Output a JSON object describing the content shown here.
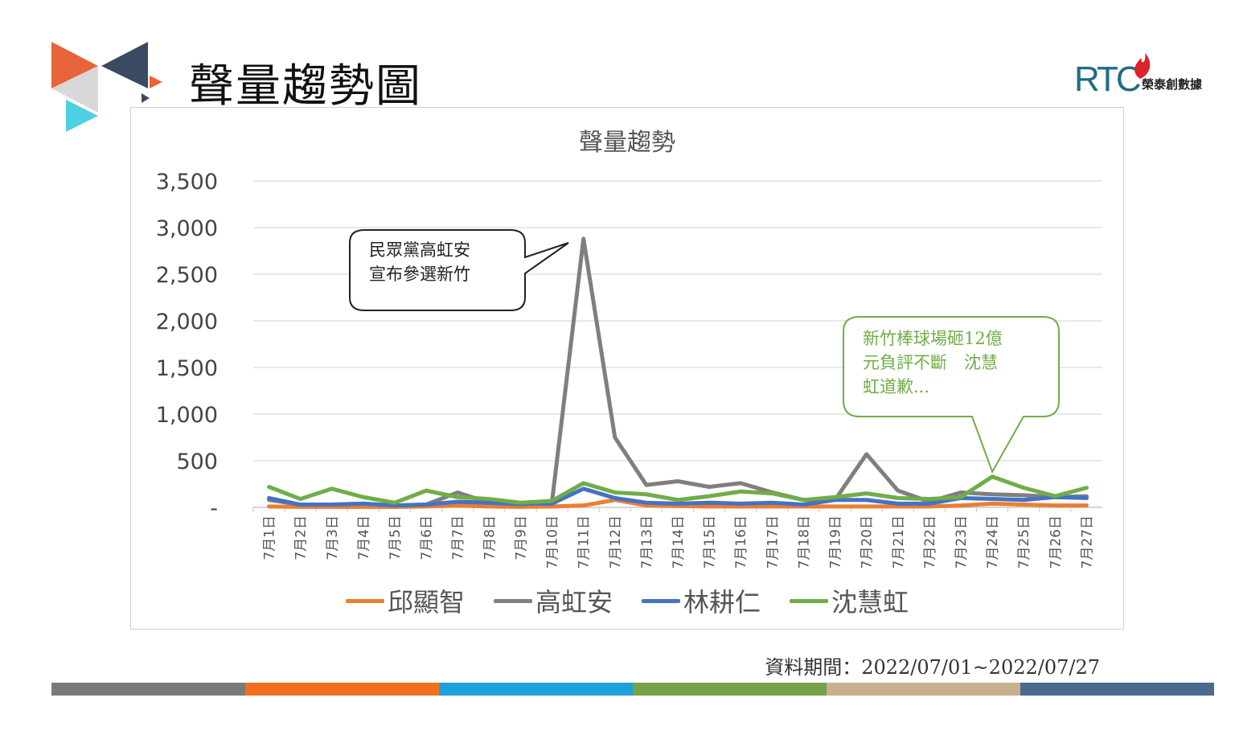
{
  "slide": {
    "title": "聲量趨勢圖",
    "brand_rtc": "RTC",
    "brand_name": "榮泰創數據",
    "period": "資料期間：2022/07/01~2022/07/27"
  },
  "colors": {
    "bar_segments": [
      "#7a7a7a",
      "#f07020",
      "#1ea0db",
      "#76a04a",
      "#c8b08c",
      "#4a6a90"
    ],
    "logo_orange": "#e8643a",
    "logo_dark": "#3a4a60",
    "logo_gray": "#d8d8d8",
    "logo_cyan": "#4dd0e1",
    "grid": "#d9d9d9"
  },
  "chart_data": {
    "type": "line",
    "title": "聲量趨勢",
    "categories": [
      "7月1日",
      "7月2日",
      "7月3日",
      "7月4日",
      "7月5日",
      "7月6日",
      "7月7日",
      "7月8日",
      "7月9日",
      "7月10日",
      "7月11日",
      "7月12日",
      "7月13日",
      "7月14日",
      "7月15日",
      "7月16日",
      "7月17日",
      "7月18日",
      "7月19日",
      "7月20日",
      "7月21日",
      "7月22日",
      "7月23日",
      "7月24日",
      "7月25日",
      "7月26日",
      "7月27日"
    ],
    "ylim": [
      0,
      3500
    ],
    "yticks": [
      0,
      500,
      1000,
      1500,
      2000,
      2500,
      3000,
      3500
    ],
    "ytick_labels": [
      "-",
      "500",
      "1,000",
      "1,500",
      "2,000",
      "2,500",
      "3,000",
      "3,500"
    ],
    "grid": true,
    "legend_position": "bottom",
    "series": [
      {
        "name": "邱顯智",
        "color": "#ed7d31",
        "values": [
          10,
          5,
          5,
          5,
          5,
          10,
          20,
          10,
          5,
          10,
          20,
          80,
          20,
          15,
          10,
          10,
          10,
          10,
          10,
          10,
          10,
          10,
          20,
          40,
          30,
          20,
          20
        ]
      },
      {
        "name": "高虹安",
        "color": "#7f7f7f",
        "values": [
          80,
          30,
          30,
          40,
          20,
          30,
          160,
          50,
          30,
          60,
          2880,
          750,
          240,
          280,
          220,
          260,
          160,
          80,
          80,
          570,
          180,
          60,
          160,
          140,
          130,
          110,
          120
        ]
      },
      {
        "name": "林耕仁",
        "color": "#4472c4",
        "values": [
          100,
          30,
          30,
          40,
          20,
          30,
          60,
          50,
          40,
          40,
          200,
          100,
          50,
          40,
          50,
          40,
          50,
          30,
          80,
          80,
          40,
          40,
          100,
          90,
          80,
          110,
          100
        ]
      },
      {
        "name": "沈慧虹",
        "color": "#70ad47",
        "values": [
          220,
          90,
          200,
          110,
          50,
          180,
          110,
          90,
          50,
          70,
          260,
          160,
          140,
          80,
          120,
          170,
          150,
          80,
          110,
          150,
          100,
          90,
          110,
          330,
          210,
          120,
          210
        ]
      }
    ],
    "annotations": [
      {
        "text": "民眾黨高虹安宣布參選新竹",
        "lines": [
          "民眾黨高虹安",
          "宣布參選新竹"
        ],
        "target_category": "7月11日",
        "target_series": "高虹安"
      },
      {
        "text": "新竹棒球場砸12億元負評不斷　沈慧虹道歉...",
        "lines": [
          "新竹棒球場砸12億",
          "元負評不斷　沈慧",
          "虹道歉..."
        ],
        "target_category": "7月24日",
        "target_series": "沈慧虹"
      }
    ]
  }
}
